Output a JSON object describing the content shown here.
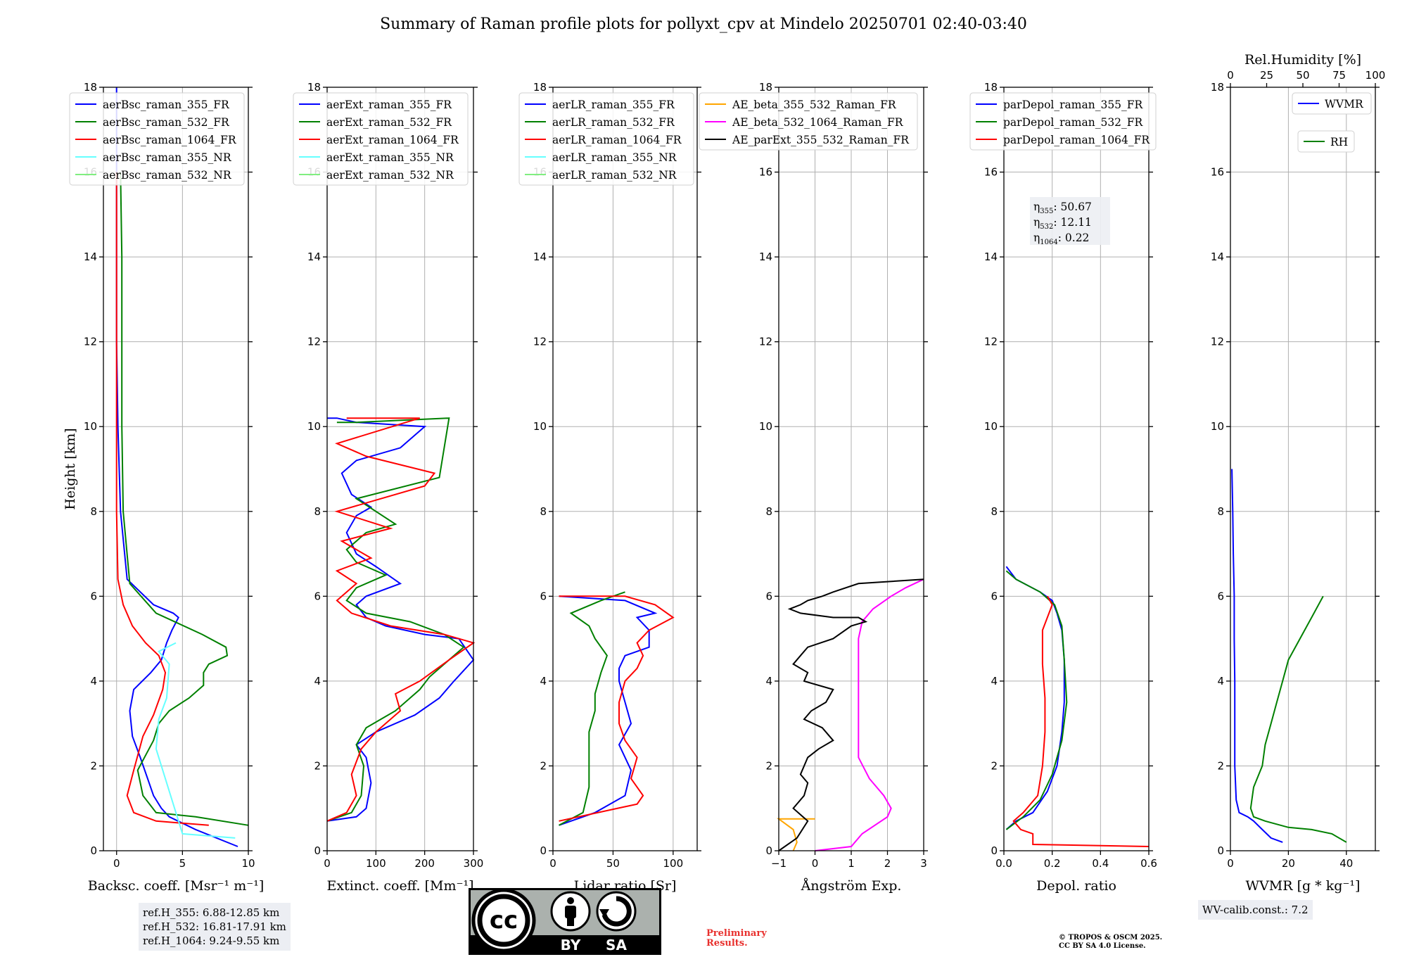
{
  "title": "Summary of Raman profile plots for pollyxt_cpv at Mindelo 20250701 02:40-03:40",
  "y_label": "Height [km]",
  "y_ticks": [
    "0",
    "2",
    "4",
    "6",
    "8",
    "10",
    "12",
    "14",
    "16",
    "18"
  ],
  "colors": {
    "blue": "#0000ff",
    "green": "#008000",
    "red": "#ff0000",
    "cyan": "#66ffff",
    "lightgreen": "#80ee80",
    "orange": "#ffa500",
    "magenta": "#ff00ff",
    "black": "#000000",
    "rh_green": "#008000"
  },
  "panels": [
    {
      "xlabel": "Backsc. coeff. [Msr⁻¹ m⁻¹]",
      "xticks": [
        "0",
        "5",
        "10"
      ],
      "legend": [
        "aerBsc_raman_355_FR",
        "aerBsc_raman_532_FR",
        "aerBsc_raman_1064_FR",
        "aerBsc_raman_355_NR",
        "aerBsc_raman_532_NR"
      ]
    },
    {
      "xlabel": "Extinct. coeff. [Mm⁻¹]",
      "xticks": [
        "0",
        "100",
        "200",
        "300"
      ],
      "legend": [
        "aerExt_raman_355_FR",
        "aerExt_raman_532_FR",
        "aerExt_raman_1064_FR",
        "aerExt_raman_355_NR",
        "aerExt_raman_532_NR"
      ]
    },
    {
      "xlabel": "Lidar ratio [Sr]",
      "xticks": [
        "0",
        "50",
        "100"
      ],
      "legend": [
        "aerLR_raman_355_FR",
        "aerLR_raman_532_FR",
        "aerLR_raman_1064_FR",
        "aerLR_raman_355_NR",
        "aerLR_raman_532_NR"
      ]
    },
    {
      "xlabel": "Ångström Exp.",
      "xticks": [
        "−1",
        "0",
        "1",
        "2",
        "3"
      ],
      "legend": [
        "AE_beta_355_532_Raman_FR",
        "AE_beta_532_1064_Raman_FR",
        "AE_parExt_355_532_Raman_FR"
      ]
    },
    {
      "xlabel": "Depol. ratio",
      "xticks": [
        "0.0",
        "0.2",
        "0.4",
        "0.6"
      ],
      "legend": [
        "parDepol_raman_355_FR",
        "parDepol_raman_532_FR",
        "parDepol_raman_1064_FR"
      ],
      "annotations": [
        {
          "sym": "η",
          "sub": "355",
          "text": ": 50.67"
        },
        {
          "sym": "η",
          "sub": "532",
          "text": ": 12.11"
        },
        {
          "sym": "η",
          "sub": "1064",
          "text": ": 0.22"
        }
      ]
    },
    {
      "xlabel": "WVMR [g * kg⁻¹]",
      "xticks": [
        "0",
        "20",
        "40"
      ],
      "top_label": "Rel.Humidity [%]",
      "top_ticks": [
        "0",
        "25",
        "50",
        "75",
        "100"
      ],
      "legend": [
        "WVMR",
        "RH"
      ]
    }
  ],
  "chart_data": [
    {
      "type": "line",
      "name": "backscatter",
      "xlim": [
        -1,
        10
      ],
      "ylim": [
        0,
        18
      ],
      "grid": true,
      "legend_position": "upper-left",
      "series": [
        {
          "name": "aerBsc_raman_355_FR",
          "x": [
            9.2,
            6,
            4,
            3.4,
            2.8,
            1.8,
            1.2,
            1,
            1.3,
            2.6,
            3.4,
            3.8,
            4.2,
            4.7,
            4.3,
            2.8,
            0.8,
            0.3,
            0.1,
            0,
            0,
            0,
            0
          ],
          "y": [
            0.1,
            0.5,
            0.8,
            1,
            1.3,
            2.2,
            2.7,
            3.3,
            3.8,
            4.2,
            4.5,
            4.9,
            5.2,
            5.5,
            5.6,
            5.8,
            6.4,
            8,
            10,
            12,
            14,
            16,
            18
          ]
        },
        {
          "name": "aerBsc_raman_532_FR",
          "x": [
            10,
            6,
            3,
            2,
            1.6,
            2.8,
            3.2,
            4,
            5.5,
            6.6,
            6.6,
            7,
            8.4,
            8.3,
            6.5,
            3,
            1,
            0.5,
            0.4,
            0.4,
            0.4,
            0.3
          ],
          "y": [
            0.6,
            0.8,
            0.9,
            1.3,
            1.9,
            2.6,
            3,
            3.3,
            3.6,
            3.9,
            4.2,
            4.4,
            4.6,
            4.8,
            5.1,
            5.6,
            6.3,
            8,
            10,
            12,
            14,
            16
          ]
        },
        {
          "name": "aerBsc_raman_1064_FR",
          "x": [
            7,
            3,
            1.3,
            0.8,
            1.3,
            2,
            2.8,
            3.5,
            3.7,
            3.2,
            2.2,
            1.2,
            0.5,
            0.1,
            0,
            0,
            0,
            0
          ],
          "y": [
            0.6,
            0.7,
            0.9,
            1.3,
            1.9,
            2.7,
            3.2,
            3.8,
            4.2,
            4.6,
            4.9,
            5.3,
            5.8,
            6.4,
            8,
            10,
            14,
            16
          ]
        },
        {
          "name": "aerBsc_raman_355_NR",
          "x": [
            9,
            5,
            3,
            3.2,
            3.8,
            4,
            3.2,
            4.5
          ],
          "y": [
            0.3,
            0.4,
            2.4,
            3.1,
            3.6,
            4.4,
            4.7,
            4.9
          ]
        },
        {
          "name": "aerBsc_raman_532_NR",
          "x": [],
          "y": []
        }
      ]
    },
    {
      "type": "line",
      "name": "extinction",
      "xlim": [
        0,
        300
      ],
      "ylim": [
        0,
        18
      ],
      "grid": true,
      "legend_position": "upper-left",
      "series": [
        {
          "name": "aerExt_raman_355_FR",
          "x": [
            0,
            60,
            80,
            90,
            80,
            60,
            100,
            180,
            230,
            260,
            300,
            270,
            200,
            120,
            80,
            60,
            80,
            150,
            100,
            60,
            40,
            60,
            90,
            50,
            30,
            60,
            150,
            200,
            60,
            20,
            0
          ],
          "y": [
            0.7,
            0.8,
            1,
            1.6,
            2.2,
            2.5,
            2.8,
            3.2,
            3.6,
            4.0,
            4.5,
            5,
            5.1,
            5.3,
            5.5,
            5.8,
            6,
            6.3,
            6.7,
            7,
            7.5,
            7.9,
            8.1,
            8.4,
            8.9,
            9.2,
            9.5,
            10.0,
            10.1,
            10.2,
            10.2
          ]
        },
        {
          "name": "aerExt_raman_532_FR",
          "x": [
            0,
            50,
            70,
            75,
            60,
            80,
            140,
            190,
            210,
            250,
            280,
            240,
            170,
            80,
            40,
            60,
            120,
            60,
            40,
            80,
            140,
            60,
            230,
            250,
            60,
            20
          ],
          "y": [
            0.7,
            0.9,
            1.3,
            2.0,
            2.5,
            2.9,
            3.3,
            3.8,
            4.1,
            4.5,
            4.8,
            5.1,
            5.4,
            5.6,
            5.9,
            6.2,
            6.5,
            6.8,
            7.1,
            7.5,
            7.7,
            8.3,
            8.8,
            10.2,
            10.1,
            10.1
          ]
        },
        {
          "name": "aerExt_raman_1064_FR",
          "x": [
            0,
            40,
            60,
            50,
            70,
            100,
            150,
            140,
            190,
            250,
            300,
            240,
            130,
            50,
            20,
            60,
            20,
            90,
            30,
            130,
            20,
            200,
            220,
            80,
            20,
            190,
            40
          ],
          "y": [
            0.7,
            0.9,
            1.3,
            1.8,
            2.4,
            2.8,
            3.3,
            3.7,
            4.0,
            4.5,
            4.9,
            5.1,
            5.3,
            5.6,
            5.9,
            6.3,
            6.6,
            6.9,
            7.3,
            7.6,
            8.0,
            8.6,
            8.9,
            9.3,
            9.6,
            10.2,
            10.2
          ]
        }
      ]
    },
    {
      "type": "line",
      "name": "lidar_ratio",
      "xlim": [
        0,
        120
      ],
      "ylim": [
        0,
        18
      ],
      "grid": true,
      "legend_position": "upper-left",
      "series": [
        {
          "name": "aerLR_raman_355_FR",
          "x": [
            5,
            35,
            60,
            65,
            55,
            65,
            60,
            55,
            55,
            60,
            80,
            80,
            70,
            85,
            60,
            5
          ],
          "y": [
            0.6,
            0.9,
            1.3,
            1.9,
            2.5,
            3.0,
            3.5,
            4.0,
            4.3,
            4.6,
            4.8,
            5.2,
            5.5,
            5.6,
            5.9,
            6.0
          ]
        },
        {
          "name": "aerLR_raman_532_FR",
          "x": [
            5,
            25,
            30,
            30,
            30,
            35,
            35,
            40,
            45,
            35,
            30,
            20,
            15,
            40,
            60
          ],
          "y": [
            0.6,
            0.9,
            1.5,
            2.1,
            2.8,
            3.3,
            3.7,
            4.2,
            4.6,
            5.0,
            5.3,
            5.5,
            5.6,
            5.9,
            6.1
          ]
        },
        {
          "name": "aerLR_raman_1064_FR",
          "x": [
            5,
            70,
            75,
            65,
            70,
            60,
            55,
            55,
            60,
            70,
            75,
            70,
            80,
            100,
            85,
            60,
            5
          ],
          "y": [
            0.7,
            1.1,
            1.3,
            1.7,
            2.2,
            2.6,
            3.0,
            3.5,
            4.0,
            4.3,
            4.6,
            4.9,
            5.2,
            5.5,
            5.8,
            6.0,
            6.0
          ]
        }
      ]
    },
    {
      "type": "line",
      "name": "angstrom",
      "xlim": [
        -1,
        3
      ],
      "ylim": [
        0,
        18
      ],
      "grid": true,
      "legend_position": "upper-right",
      "series": [
        {
          "name": "AE_beta_355_532_Raman_FR",
          "x": [
            -0.6,
            -0.5,
            -0.6,
            -1,
            0
          ],
          "y": [
            0,
            0.2,
            0.5,
            0.75,
            0.75
          ]
        },
        {
          "name": "AE_beta_532_1064_Raman_FR",
          "x": [
            0,
            1,
            1.3,
            2,
            2.1,
            1.9,
            1.5,
            1.2,
            1.2,
            1.2,
            1.2,
            1.3,
            1.6,
            2.1,
            2.5,
            3
          ],
          "y": [
            0,
            0.1,
            0.4,
            0.8,
            1.0,
            1.3,
            1.7,
            2.2,
            3.0,
            4.0,
            5.0,
            5.4,
            5.7,
            6.0,
            6.2,
            6.4
          ]
        },
        {
          "name": "AE_parExt_355_532_Raman_FR",
          "x": [
            -1,
            -0.5,
            -0.2,
            -0.6,
            -0.3,
            -0.2,
            -0.4,
            -0.2,
            0.1,
            0.5,
            0.2,
            -0.3,
            -0.1,
            0.3,
            0.5,
            -0.3,
            -0.2,
            -0.6,
            -0.4,
            -0.2,
            0.5,
            1.0,
            1.4,
            1.2,
            0.5,
            -0.4,
            -0.7,
            -0.4,
            -0.2,
            0.2,
            0.5,
            1.2,
            3
          ],
          "y": [
            0,
            0.3,
            0.7,
            1.0,
            1.3,
            1.6,
            1.8,
            2.2,
            2.4,
            2.6,
            2.9,
            3.1,
            3.3,
            3.5,
            3.8,
            4.0,
            4.2,
            4.4,
            4.6,
            4.8,
            5.0,
            5.3,
            5.4,
            5.5,
            5.5,
            5.6,
            5.7,
            5.8,
            5.9,
            6.0,
            6.1,
            6.3,
            6.4
          ]
        }
      ]
    },
    {
      "type": "line",
      "name": "depol",
      "xlim": [
        0,
        0.6
      ],
      "ylim": [
        0,
        18
      ],
      "grid": true,
      "legend_position": "upper-left",
      "series": [
        {
          "name": "parDepol_raman_355_FR",
          "x": [
            0.01,
            0.05,
            0.12,
            0.18,
            0.22,
            0.24,
            0.25,
            0.25,
            0.24,
            0.22,
            0.2,
            0.15,
            0.05,
            0.01
          ],
          "y": [
            0.5,
            0.7,
            0.9,
            1.4,
            2.0,
            2.8,
            3.5,
            4.5,
            5.2,
            5.6,
            5.9,
            6.1,
            6.4,
            6.7
          ]
        },
        {
          "name": "parDepol_raman_532_FR",
          "x": [
            0.01,
            0.08,
            0.15,
            0.2,
            0.24,
            0.26,
            0.25,
            0.24,
            0.21,
            0.15,
            0.05,
            0.01
          ],
          "y": [
            0.5,
            0.8,
            1.2,
            1.8,
            2.6,
            3.5,
            4.5,
            5.3,
            5.8,
            6.1,
            6.4,
            6.6
          ]
        },
        {
          "name": "parDepol_raman_1064_FR",
          "x": [
            0.6,
            0.12,
            0.12,
            0.07,
            0.04,
            0.08,
            0.14,
            0.16,
            0.17,
            0.17,
            0.16,
            0.16,
            0.2,
            0.18
          ],
          "y": [
            0.1,
            0.15,
            0.4,
            0.5,
            0.7,
            0.9,
            1.3,
            2.0,
            2.8,
            3.6,
            4.4,
            5.2,
            5.8,
            6.0
          ]
        }
      ]
    },
    {
      "type": "line",
      "name": "wv",
      "xlim": [
        0,
        50
      ],
      "ylim": [
        0,
        18
      ],
      "grid": true,
      "legend_position": "upper-right",
      "series": [
        {
          "name": "WVMR",
          "x": [
            18,
            14,
            11,
            8,
            6,
            3,
            2,
            1.5,
            1.5,
            1.5,
            1.3,
            1.3,
            1,
            0.8,
            0.5
          ],
          "y": [
            0.2,
            0.3,
            0.5,
            0.7,
            0.8,
            0.9,
            1.2,
            2.0,
            3.0,
            4.0,
            5.0,
            6.0,
            7.0,
            8.0,
            9.0
          ]
        },
        {
          "name": "RH",
          "x": [
            40,
            35,
            28,
            20,
            12,
            8,
            7,
            8,
            11,
            12,
            14,
            16,
            18,
            20,
            24,
            28,
            32
          ],
          "y": [
            0.2,
            0.4,
            0.5,
            0.55,
            0.7,
            0.8,
            1.0,
            1.5,
            2.0,
            2.5,
            3.0,
            3.5,
            4.0,
            4.5,
            5.0,
            5.5,
            6.0
          ]
        }
      ]
    }
  ],
  "notes": {
    "ref_heights": [
      "ref.H_355: 6.88-12.85 km",
      "ref.H_532: 16.81-17.91 km",
      "ref.H_1064: 9.24-9.55 km"
    ],
    "wv_calib": "WV-calib.const.: 7.2",
    "preliminary": [
      "Preliminary",
      "Results."
    ],
    "copyright": [
      "© TROPOS & OSCM 2025.",
      "CC BY SA 4.0 License."
    ],
    "cc_labels": {
      "cc": "cc",
      "by": "BY",
      "sa": "SA"
    }
  }
}
